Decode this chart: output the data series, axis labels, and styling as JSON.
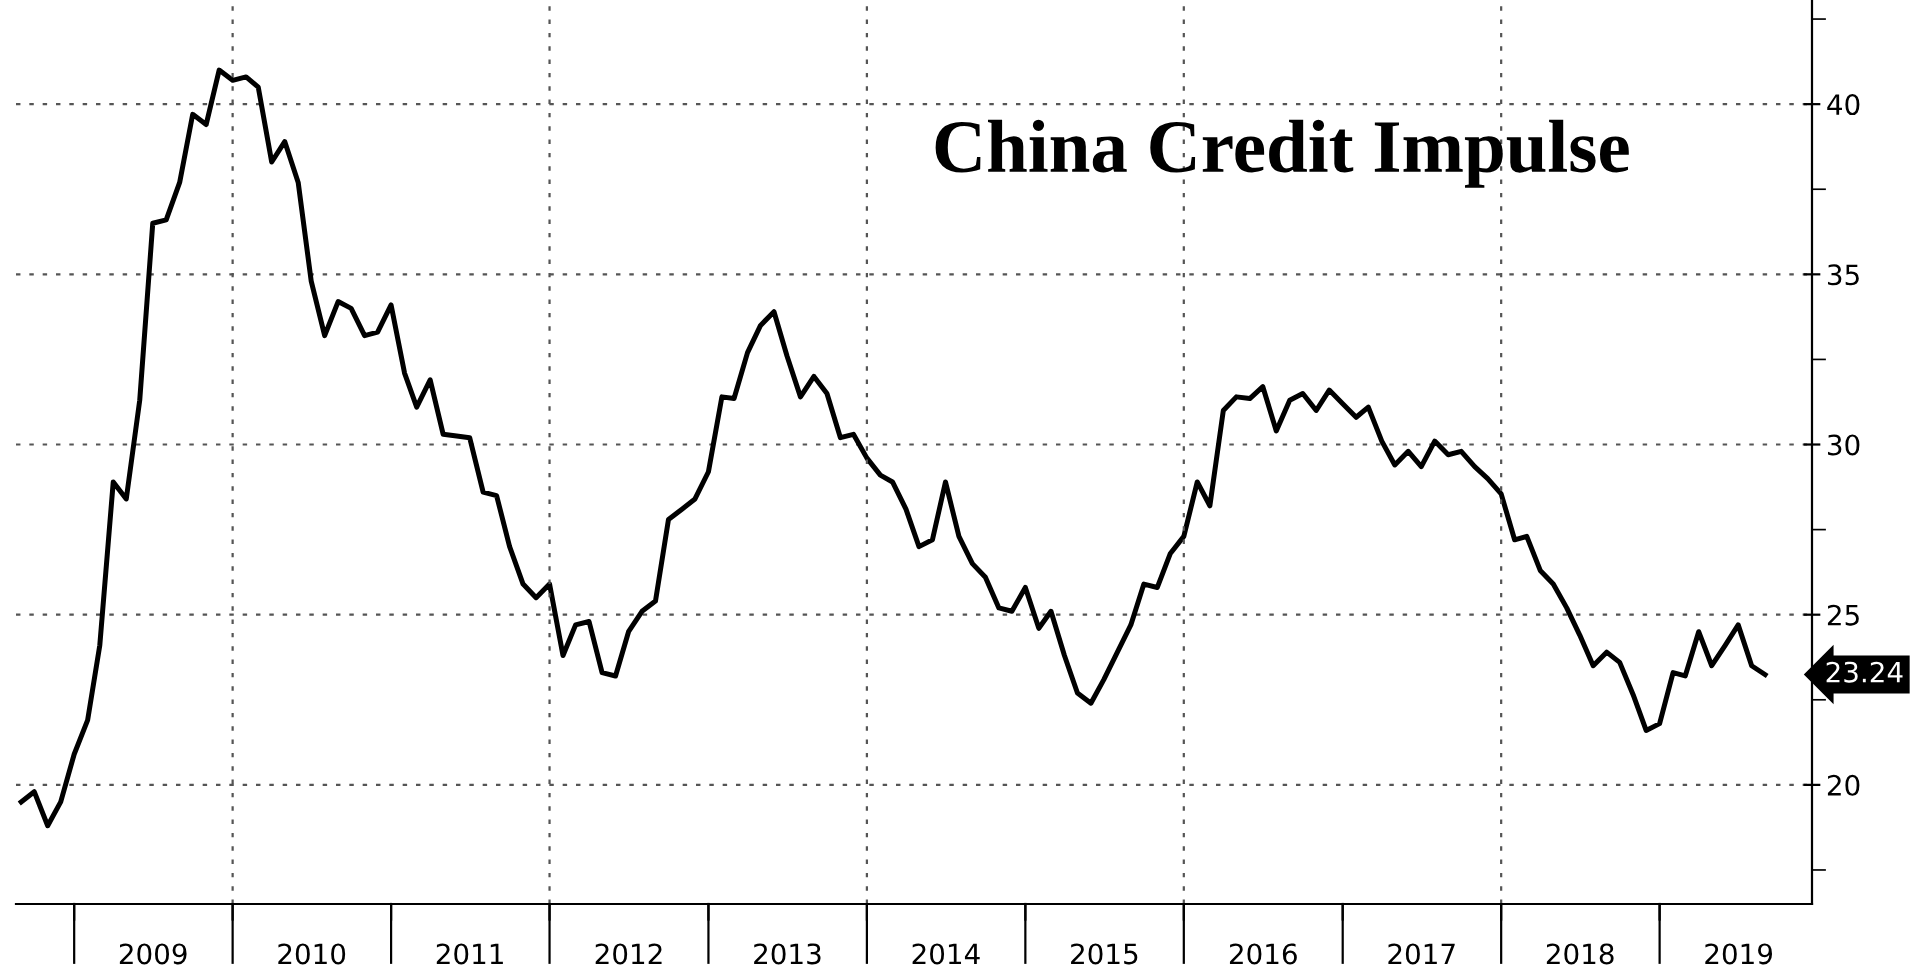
{
  "chart_data": {
    "type": "line",
    "title": "China Credit Impulse",
    "x": [
      "2008-09",
      "2008-10",
      "2008-11",
      "2008-12",
      "2009-01",
      "2009-02",
      "2009-03",
      "2009-04",
      "2009-05",
      "2009-06",
      "2009-07",
      "2009-08",
      "2009-09",
      "2009-10",
      "2009-11",
      "2009-12",
      "2010-01",
      "2010-02",
      "2010-03",
      "2010-04",
      "2010-05",
      "2010-06",
      "2010-07",
      "2010-08",
      "2010-09",
      "2010-10",
      "2010-11",
      "2010-12",
      "2011-01",
      "2011-02",
      "2011-03",
      "2011-04",
      "2011-05",
      "2011-06",
      "2011-07",
      "2011-08",
      "2011-09",
      "2011-10",
      "2011-11",
      "2011-12",
      "2012-01",
      "2012-02",
      "2012-03",
      "2012-04",
      "2012-05",
      "2012-06",
      "2012-07",
      "2012-08",
      "2012-09",
      "2012-10",
      "2012-11",
      "2012-12",
      "2013-01",
      "2013-02",
      "2013-03",
      "2013-04",
      "2013-05",
      "2013-06",
      "2013-07",
      "2013-08",
      "2013-09",
      "2013-10",
      "2013-11",
      "2013-12",
      "2014-01",
      "2014-02",
      "2014-03",
      "2014-04",
      "2014-05",
      "2014-06",
      "2014-07",
      "2014-08",
      "2014-09",
      "2014-10",
      "2014-11",
      "2014-12",
      "2015-01",
      "2015-02",
      "2015-03",
      "2015-04",
      "2015-05",
      "2015-06",
      "2015-07",
      "2015-08",
      "2015-09",
      "2015-10",
      "2015-11",
      "2015-12",
      "2016-01",
      "2016-02",
      "2016-03",
      "2016-04",
      "2016-05",
      "2016-06",
      "2016-07",
      "2016-08",
      "2016-09",
      "2016-10",
      "2016-11",
      "2016-12",
      "2017-01",
      "2017-02",
      "2017-03",
      "2017-04",
      "2017-05",
      "2017-06",
      "2017-07",
      "2017-08",
      "2017-09",
      "2017-10",
      "2017-11",
      "2017-12",
      "2018-01",
      "2018-02",
      "2018-03",
      "2018-04",
      "2018-05",
      "2018-06",
      "2018-07",
      "2018-08",
      "2018-09",
      "2018-10",
      "2018-11",
      "2018-12",
      "2019-01",
      "2019-02",
      "2019-03",
      "2019-04",
      "2019-05",
      "2019-06",
      "2019-07",
      "2019-08",
      "2019-09"
    ],
    "series": [
      {
        "color": "#000000",
        "values": [
          19.5,
          19.8,
          18.8,
          19.5,
          20.9,
          21.9,
          24.1,
          28.9,
          28.4,
          31.3,
          36.5,
          36.6,
          37.7,
          39.7,
          39.4,
          41.0,
          40.7,
          40.8,
          40.5,
          38.3,
          38.9,
          37.7,
          34.8,
          33.2,
          34.2,
          34.0,
          33.2,
          33.3,
          34.1,
          32.1,
          31.1,
          31.9,
          30.3,
          30.25,
          30.2,
          28.6,
          28.5,
          27.0,
          25.9,
          25.5,
          25.9,
          23.8,
          24.7,
          24.8,
          23.3,
          23.2,
          24.5,
          25.1,
          25.4,
          27.8,
          28.1,
          28.4,
          29.2,
          31.4,
          31.35,
          32.7,
          33.5,
          33.9,
          32.6,
          31.4,
          32.0,
          31.5,
          30.2,
          30.3,
          29.6,
          29.1,
          28.9,
          28.1,
          27.0,
          27.2,
          28.9,
          27.3,
          26.5,
          26.1,
          25.2,
          25.1,
          25.8,
          24.6,
          25.1,
          23.8,
          22.7,
          22.4,
          23.1,
          23.9,
          24.7,
          25.9,
          25.8,
          26.8,
          27.3,
          28.9,
          28.2,
          31.0,
          31.4,
          31.35,
          31.7,
          30.4,
          31.3,
          31.5,
          31.0,
          31.6,
          31.2,
          30.8,
          31.1,
          30.1,
          29.4,
          29.8,
          29.35,
          30.1,
          29.7,
          29.8,
          29.35,
          29.0,
          28.55,
          27.2,
          27.3,
          26.3,
          25.9,
          25.2,
          24.4,
          23.5,
          23.9,
          23.6,
          22.65,
          21.6,
          21.8,
          23.3,
          23.2,
          24.5,
          23.5,
          24.1,
          24.7,
          23.5,
          23.24
        ]
      }
    ],
    "xlim": [
      "2008-08-20",
      "2019-12-18"
    ],
    "xticks": [
      {
        "value": "2009-01-01",
        "label": null
      },
      {
        "value": "2009-07-02",
        "label": "2009"
      },
      {
        "value": "2010-01-01",
        "label": null
      },
      {
        "value": "2010-07-02",
        "label": "2010"
      },
      {
        "value": "2011-01-01",
        "label": null
      },
      {
        "value": "2011-07-02",
        "label": "2011"
      },
      {
        "value": "2012-01-01",
        "label": null
      },
      {
        "value": "2012-07-02",
        "label": "2012"
      },
      {
        "value": "2013-01-01",
        "label": null
      },
      {
        "value": "2013-07-02",
        "label": "2013"
      },
      {
        "value": "2014-01-01",
        "label": null
      },
      {
        "value": "2014-07-02",
        "label": "2014"
      },
      {
        "value": "2015-01-01",
        "label": null
      },
      {
        "value": "2015-07-02",
        "label": "2015"
      },
      {
        "value": "2016-01-01",
        "label": null
      },
      {
        "value": "2016-07-02",
        "label": "2016"
      },
      {
        "value": "2017-01-01",
        "label": null
      },
      {
        "value": "2017-07-02",
        "label": "2017"
      },
      {
        "value": "2018-01-01",
        "label": null
      },
      {
        "value": "2018-07-02",
        "label": "2018"
      },
      {
        "value": "2019-01-01",
        "label": null
      },
      {
        "value": "2019-07-02",
        "label": "2019"
      }
    ],
    "ylim": [
      16.5,
      43.06
    ],
    "yticks": [
      {
        "value": 17.5,
        "label": null
      },
      20,
      {
        "value": 22.5,
        "label": null
      },
      25,
      {
        "value": 27.5,
        "label": null
      },
      30,
      {
        "value": 32.5,
        "label": null
      },
      35,
      {
        "value": 37.5,
        "label": null
      },
      40,
      {
        "value": 42.5,
        "label": null
      }
    ],
    "grid": "y",
    "ref_lines": [
      {
        "axis": "x",
        "value": "2010-01-01",
        "label": null,
        "color": "#555555",
        "line_style": "dotted"
      },
      {
        "axis": "x",
        "value": "2012-01-01",
        "label": null,
        "color": "#555555",
        "line_style": "dotted"
      },
      {
        "axis": "x",
        "value": "2014-01-01",
        "label": null,
        "color": "#555555",
        "line_style": "dotted"
      },
      {
        "axis": "x",
        "value": "2016-01-01",
        "label": null,
        "color": "#555555",
        "line_style": "dotted"
      },
      {
        "axis": "x",
        "value": "2018-01-01",
        "label": null,
        "color": "#555555",
        "line_style": "dotted"
      }
    ],
    "annotations": [
      {
        "text": "23.24",
        "x": "2019-09",
        "y": 23.24
      }
    ],
    "line_style": "solid",
    "marker": "none"
  }
}
